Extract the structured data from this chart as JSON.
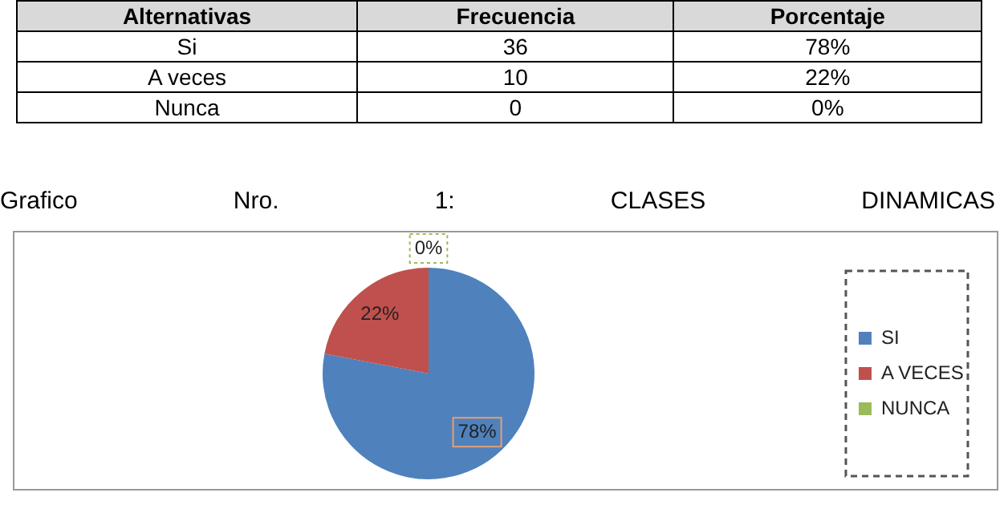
{
  "chart_data": [
    {
      "type": "other",
      "xlabel": "Alternativas",
      "categories": [
        "Si",
        "A veces",
        "Nunca"
      ],
      "data_labels": true,
      "series": [
        {
          "name": "Frecuencia",
          "values": [
            36,
            10,
            0
          ]
        },
        {
          "name": "Porcentaje",
          "values": [
            78,
            22,
            0
          ],
          "value_labels": [
            "78%",
            "22%",
            "0%"
          ]
        }
      ]
    },
    {
      "type": "pie",
      "title": "Grafico Nro. 1: CLASES DINAMICAS",
      "categories": [
        "SI",
        "A VECES",
        "NUNCA"
      ],
      "values": [
        78,
        22,
        0
      ],
      "value_labels": [
        "78%",
        "22%",
        "0%"
      ],
      "colors": [
        "#4f81bd",
        "#c0504d",
        "#9bbb59"
      ],
      "legend": "right"
    }
  ]
}
